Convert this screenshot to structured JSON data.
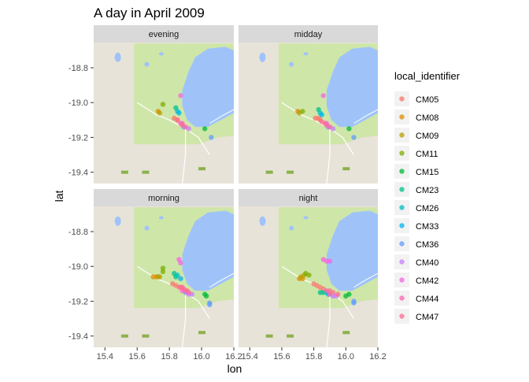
{
  "chart_data": {
    "type": "scatter",
    "title": "A day in April 2009",
    "xlabel": "lon",
    "ylabel": "lat",
    "xlim": [
      15.33,
      16.2
    ],
    "ylim": [
      -19.465,
      -18.655
    ],
    "x_ticks": [
      "15.4",
      "15.6",
      "15.8",
      "16.0",
      "16.2"
    ],
    "y_ticks": [
      "-18.8",
      "-19.0",
      "-19.2",
      "-19.4"
    ],
    "x_tick_values": [
      15.4,
      15.6,
      15.8,
      16.0,
      16.2
    ],
    "y_tick_values": [
      -18.8,
      -19.0,
      -19.2,
      -19.4
    ],
    "facets": [
      "evening",
      "midday",
      "morning",
      "night"
    ],
    "legend": {
      "title": "local_identifier",
      "position": "right",
      "entries": [
        {
          "name": "CM05",
          "color": "#F8766D"
        },
        {
          "name": "CM08",
          "color": "#DE8C00"
        },
        {
          "name": "CM09",
          "color": "#B79F00"
        },
        {
          "name": "CM11",
          "color": "#7CAE00"
        },
        {
          "name": "CM15",
          "color": "#00BA38"
        },
        {
          "name": "CM23",
          "color": "#00C08B"
        },
        {
          "name": "CM26",
          "color": "#00BFC4"
        },
        {
          "name": "CM33",
          "color": "#00B4F0"
        },
        {
          "name": "CM36",
          "color": "#619CFF"
        },
        {
          "name": "CM40",
          "color": "#C77CFF"
        },
        {
          "name": "CM42",
          "color": "#F564E3"
        },
        {
          "name": "CM44",
          "color": "#FF64B0"
        },
        {
          "name": "CM47",
          "color": "#FF6C91"
        }
      ]
    },
    "series": [
      {
        "name": "CM05",
        "points": {
          "evening": [
            [
              15.83,
              -19.09
            ],
            [
              15.85,
              -19.1
            ]
          ],
          "midday": [
            [
              15.81,
              -19.09
            ],
            [
              15.83,
              -19.09
            ],
            [
              15.84,
              -19.1
            ]
          ],
          "morning": [
            [
              15.82,
              -19.1
            ],
            [
              15.84,
              -19.11
            ],
            [
              15.86,
              -19.12
            ]
          ],
          "night": [
            [
              15.8,
              -19.1
            ],
            [
              15.82,
              -19.11
            ],
            [
              15.84,
              -19.12
            ],
            [
              15.86,
              -19.13
            ]
          ]
        }
      },
      {
        "name": "CM08",
        "points": {
          "evening": [
            [
              15.73,
              -19.05
            ]
          ],
          "midday": [
            [
              15.7,
              -19.05
            ]
          ],
          "morning": [
            [
              15.7,
              -19.06
            ],
            [
              15.72,
              -19.06
            ]
          ],
          "night": [
            [
              15.71,
              -19.07
            ],
            [
              15.73,
              -19.07
            ]
          ]
        }
      },
      {
        "name": "CM09",
        "points": {
          "evening": [
            [
              15.74,
              -19.06
            ]
          ],
          "midday": [
            [
              15.71,
              -19.06
            ]
          ],
          "morning": [
            [
              15.73,
              -19.06
            ],
            [
              15.74,
              -19.06
            ]
          ],
          "night": [
            [
              15.72,
              -19.06
            ],
            [
              15.74,
              -19.05
            ]
          ]
        }
      },
      {
        "name": "CM11",
        "points": {
          "evening": [
            [
              15.76,
              -19.01
            ]
          ],
          "midday": [
            [
              15.73,
              -19.05
            ]
          ],
          "morning": [
            [
              15.76,
              -19.01
            ],
            [
              15.76,
              -19.03
            ]
          ],
          "night": [
            [
              15.75,
              -19.04
            ],
            [
              15.77,
              -19.05
            ]
          ]
        }
      },
      {
        "name": "CM15",
        "points": {
          "evening": [
            [
              16.02,
              -19.15
            ]
          ],
          "midday": [
            [
              16.02,
              -19.15
            ]
          ],
          "morning": [
            [
              16.02,
              -19.16
            ],
            [
              16.03,
              -19.17
            ]
          ],
          "night": [
            [
              16.0,
              -19.17
            ],
            [
              16.02,
              -19.16
            ]
          ]
        }
      },
      {
        "name": "CM23",
        "points": {
          "evening": [
            [
              15.84,
              -19.03
            ]
          ],
          "midday": [
            [
              15.83,
              -19.04
            ]
          ],
          "morning": [
            [
              15.83,
              -19.04
            ],
            [
              15.84,
              -19.06
            ]
          ],
          "night": [
            [
              15.84,
              -19.15
            ],
            [
              15.86,
              -19.15
            ]
          ]
        }
      },
      {
        "name": "CM26",
        "points": {
          "evening": [
            [
              15.85,
              -19.05
            ]
          ],
          "midday": [
            [
              15.84,
              -19.06
            ]
          ],
          "morning": [
            [
              15.85,
              -19.05
            ]
          ],
          "night": [
            [
              15.88,
              -19.15
            ]
          ]
        }
      },
      {
        "name": "CM33",
        "points": {
          "evening": [
            [
              15.86,
              -19.06
            ]
          ],
          "midday": [
            [
              15.85,
              -19.07
            ]
          ],
          "morning": [
            [
              15.87,
              -19.07
            ]
          ],
          "night": [
            [
              15.89,
              -19.16
            ]
          ]
        }
      },
      {
        "name": "CM36",
        "points": {
          "evening": [
            [
              15.89,
              -19.14
            ],
            [
              16.06,
              -19.2
            ]
          ],
          "midday": [
            [
              15.89,
              -19.14
            ],
            [
              16.05,
              -19.2
            ]
          ],
          "morning": [
            [
              15.9,
              -19.15
            ],
            [
              16.05,
              -19.21
            ],
            [
              16.05,
              -19.22
            ]
          ],
          "night": [
            [
              16.05,
              -19.2
            ],
            [
              16.05,
              -19.21
            ]
          ]
        }
      },
      {
        "name": "CM40",
        "points": {
          "evening": [
            [
              15.92,
              -19.15
            ]
          ],
          "midday": [
            [
              15.92,
              -19.15
            ]
          ],
          "morning": [
            [
              15.92,
              -19.16
            ],
            [
              15.94,
              -19.16
            ]
          ],
          "night": [
            [
              15.92,
              -19.17
            ],
            [
              15.94,
              -19.17
            ]
          ]
        }
      },
      {
        "name": "CM42",
        "points": {
          "evening": [
            [
              15.87,
              -18.96
            ],
            [
              15.88,
              -19.12
            ]
          ],
          "midday": [
            [
              15.86,
              -18.96
            ],
            [
              15.88,
              -19.12
            ]
          ],
          "morning": [
            [
              15.86,
              -18.96
            ],
            [
              15.87,
              -18.98
            ],
            [
              15.88,
              -19.14
            ]
          ],
          "night": [
            [
              15.86,
              -18.96
            ],
            [
              15.88,
              -18.97
            ],
            [
              15.9,
              -18.97
            ]
          ]
        }
      },
      {
        "name": "CM44",
        "points": {
          "evening": [
            [
              15.87,
              -19.12
            ],
            [
              15.9,
              -19.14
            ]
          ],
          "midday": [
            [
              15.87,
              -19.12
            ],
            [
              15.9,
              -19.14
            ]
          ],
          "morning": [
            [
              15.88,
              -19.12
            ],
            [
              15.9,
              -19.14
            ],
            [
              15.92,
              -19.15
            ]
          ],
          "night": [
            [
              15.88,
              -19.14
            ],
            [
              15.9,
              -19.16
            ]
          ]
        }
      },
      {
        "name": "CM47",
        "points": {
          "evening": [
            [
              15.85,
              -19.1
            ],
            [
              15.88,
              -19.13
            ]
          ],
          "midday": [
            [
              15.85,
              -19.11
            ],
            [
              15.88,
              -19.13
            ]
          ],
          "morning": [
            [
              15.87,
              -19.12
            ],
            [
              15.89,
              -19.13
            ],
            [
              15.91,
              -19.14
            ]
          ],
          "night": [
            [
              15.9,
              -19.14
            ],
            [
              15.92,
              -19.15
            ],
            [
              15.95,
              -19.16
            ]
          ]
        }
      }
    ],
    "basemap": {
      "colors": {
        "land": "#e8e3d9",
        "park": "#cfe6a9",
        "water": "#9fc3f9",
        "road": "#ffffff",
        "strip": "#d9d9d9"
      }
    }
  }
}
